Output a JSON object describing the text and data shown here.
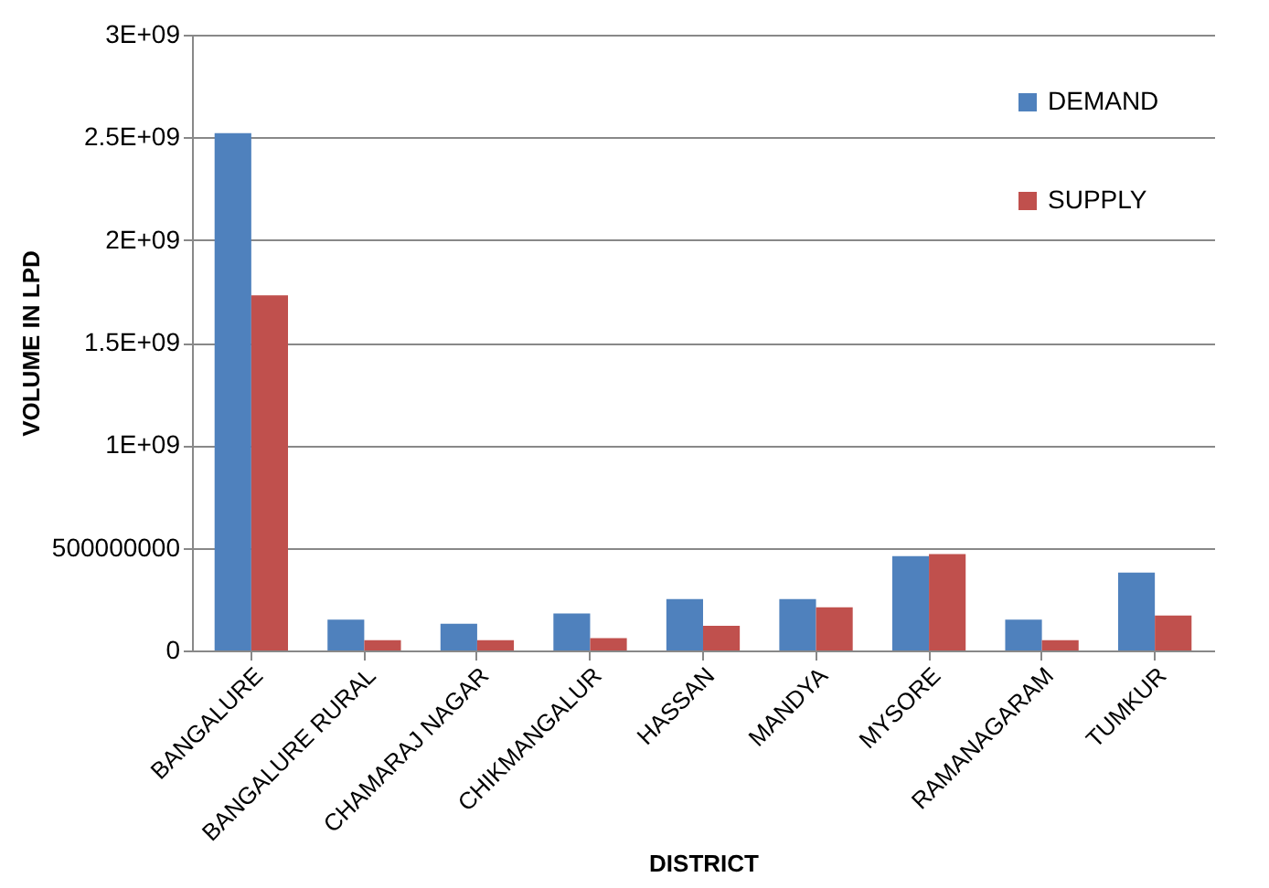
{
  "chart_data": {
    "type": "bar",
    "xlabel": "DISTRICT",
    "ylabel": "VOLUME IN LPD",
    "categories": [
      "BANGALURE",
      "BANGALURE RURAL",
      "CHAMARAJ NAGAR",
      "CHIKMANGALUR",
      "HASSAN",
      "MANDYA",
      "MYSORE",
      "RAMANAGARAM",
      "TUMKUR"
    ],
    "series": [
      {
        "name": "DEMAND",
        "color": "#4f81bd",
        "values": [
          2520000000,
          150000000,
          130000000,
          180000000,
          250000000,
          250000000,
          460000000,
          150000000,
          380000000
        ]
      },
      {
        "name": "SUPPLY",
        "color": "#c0504d",
        "values": [
          1730000000,
          50000000,
          50000000,
          60000000,
          120000000,
          210000000,
          470000000,
          50000000,
          170000000
        ]
      }
    ],
    "ylim": [
      0,
      3000000000
    ],
    "yticks": [
      0,
      500000000,
      {
        "value": 1000000000,
        "label": "1E+09"
      },
      {
        "value": 1500000000,
        "label": "1.5E+09"
      },
      {
        "value": 2000000000,
        "label": "2E+09"
      },
      {
        "value": 2500000000,
        "label": "2.5E+09"
      },
      {
        "value": 3000000000,
        "label": "3E+09"
      }
    ],
    "grid": "y",
    "legend": "top right"
  }
}
